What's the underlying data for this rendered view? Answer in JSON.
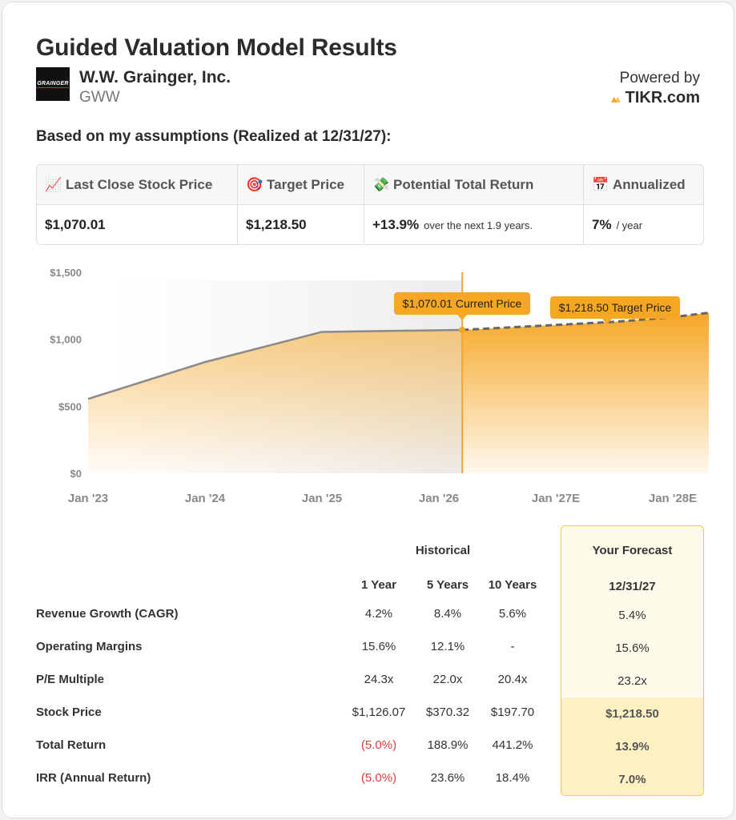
{
  "header": {
    "title": "Guided Valuation Model Results",
    "logo_text": "GRAINGER",
    "company": "W.W. Grainger, Inc.",
    "ticker": "GWW",
    "powered_by": "Powered by",
    "brand": "TIKR.com",
    "subtitle": "Based on my assumptions (Realized at 12/31/27):"
  },
  "summary": {
    "last_close_label": "Last Close Stock Price",
    "last_close_value": "$1,070.01",
    "target_label": "Target Price",
    "target_value": "$1,218.50",
    "return_label": "Potential Total Return",
    "return_value": "+13.9%",
    "return_note": "over the next 1.9 years.",
    "annualized_label": "Annualized",
    "annualized_value": "7%",
    "annualized_note": "/ year"
  },
  "chart_data": {
    "type": "area",
    "x": [
      "Jan '23",
      "Jan '24",
      "Jan '25",
      "Jan '26",
      "Jan '27E",
      "Jan '28E"
    ],
    "y_ticks": [
      "$0",
      "$500",
      "$1,000",
      "$1,500"
    ],
    "ylim": [
      0,
      1500
    ],
    "historical": [
      {
        "t": 0,
        "v": 555
      },
      {
        "t": 1,
        "v": 830
      },
      {
        "t": 2,
        "v": 1055
      },
      {
        "t": 3.2,
        "v": 1070
      }
    ],
    "forecast": [
      {
        "t": 3.2,
        "v": 1070.01
      },
      {
        "t": 4.5,
        "v": 1130
      },
      {
        "t": 5,
        "v": 1165
      },
      {
        "t": 5.5,
        "v": 1218.5
      }
    ],
    "current_label": "$1,070.01 Current Price",
    "target_label": "$1,218.50 Target Price",
    "colors": {
      "accent": "#f5a623",
      "line": "#8a8a8a"
    }
  },
  "table": {
    "historical_label": "Historical",
    "forecast_label": "Your Forecast",
    "columns": [
      "1 Year",
      "5 Years",
      "10 Years"
    ],
    "forecast_date": "12/31/27",
    "rows": [
      {
        "label": "Revenue Growth (CAGR)",
        "values": [
          "4.2%",
          "8.4%",
          "5.6%"
        ],
        "forecast": "5.4%"
      },
      {
        "label": "Operating Margins",
        "values": [
          "15.6%",
          "12.1%",
          "-"
        ],
        "forecast": "15.6%"
      },
      {
        "label": "P/E Multiple",
        "values": [
          "24.3x",
          "22.0x",
          "20.4x"
        ],
        "forecast": "23.2x"
      },
      {
        "label": "Stock Price",
        "values": [
          "$1,126.07",
          "$370.32",
          "$197.70"
        ],
        "forecast": "$1,218.50"
      },
      {
        "label": "Total Return",
        "values": [
          "(5.0%)",
          "188.9%",
          "441.2%"
        ],
        "forecast": "13.9%"
      },
      {
        "label": "IRR (Annual Return)",
        "values": [
          "(5.0%)",
          "23.6%",
          "18.4%"
        ],
        "forecast": "7.0%"
      }
    ]
  }
}
